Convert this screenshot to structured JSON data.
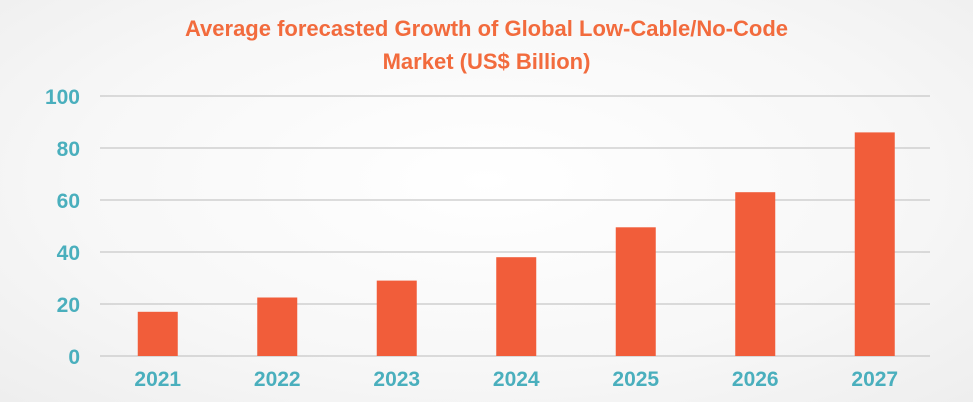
{
  "chart_data": {
    "type": "bar",
    "title_lines": [
      "Average forecasted Growth of Global Low-Cable/No-Code",
      "Market (US$ Billion)"
    ],
    "categories": [
      "2021",
      "2022",
      "2023",
      "2024",
      "2025",
      "2026",
      "2027"
    ],
    "values": [
      17,
      22.5,
      29,
      38,
      49.5,
      63,
      86
    ],
    "ylim": [
      0,
      100
    ],
    "yticks": [
      0,
      20,
      40,
      60,
      80,
      100
    ],
    "ytick_labels": [
      "0",
      "20",
      "40",
      "60",
      "80",
      "100"
    ],
    "grid": true,
    "legend": "none",
    "xlabel": "",
    "ylabel": "",
    "colors": {
      "bar": "#f15d3a",
      "title": "#f26b3d",
      "axis_labels": "#4aafbd",
      "grid": "#c8c8c8"
    }
  }
}
